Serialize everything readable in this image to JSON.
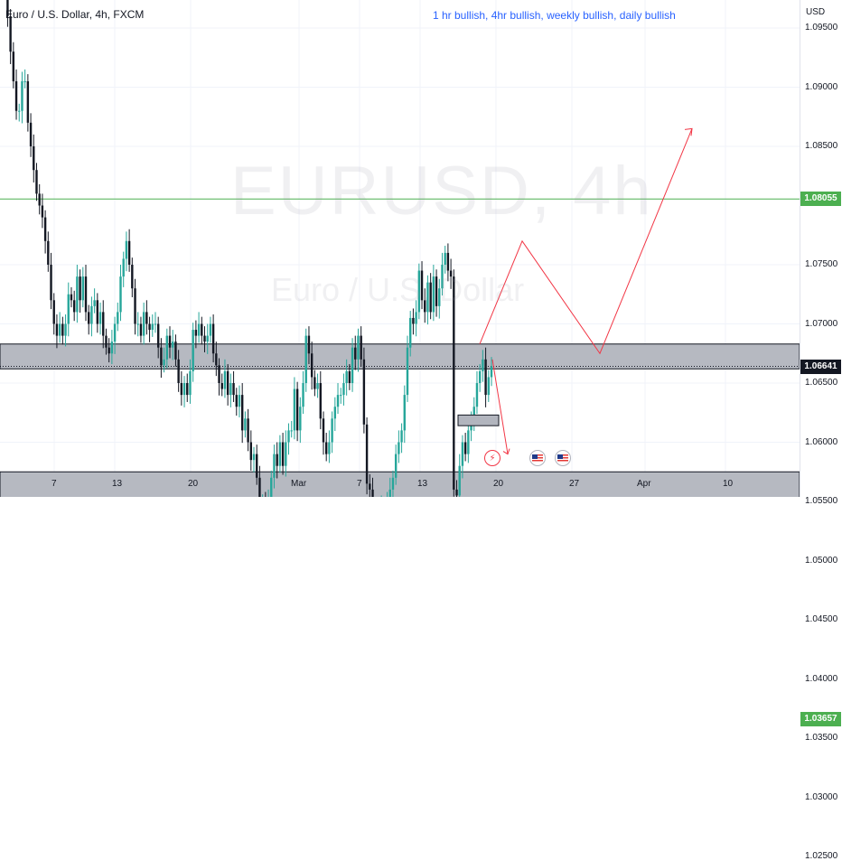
{
  "header": {
    "symbol_title": "Euro / U.S. Dollar, 4h, FXCM"
  },
  "annotation": {
    "text": "1 hr bullish, 4hr bullish, weekly bullish, daily bullish"
  },
  "watermark": {
    "symbol": "EURUSD, 4h",
    "description": "Euro / U.S. Dollar"
  },
  "price_axis": {
    "currency": "USD",
    "labels": [
      "1.09500",
      "1.09000",
      "1.08500",
      "1.07500",
      "1.07000",
      "1.06500",
      "1.06000",
      "1.05500",
      "1.05000",
      "1.04500",
      "1.04000",
      "1.03500",
      "1.03000",
      "1.02500"
    ],
    "tags": [
      {
        "value": "1.08055",
        "style": "green"
      },
      {
        "value": "1.06641",
        "style": "black"
      },
      {
        "value": "1.03657",
        "style": "green"
      }
    ]
  },
  "time_axis": {
    "labels": [
      "7",
      "13",
      "20",
      "Mar",
      "7",
      "13",
      "20",
      "27",
      "Apr",
      "10"
    ]
  },
  "colors": {
    "up": "#26a69a",
    "down": "#131722",
    "level": "#4caf50",
    "zone": "#b2b5be",
    "projection": "#f23645",
    "note": "#2962ff"
  },
  "events": [
    "flash-icon",
    "us-flag-icon",
    "us-flag-icon"
  ],
  "chart_data": {
    "type": "candlestick",
    "symbol": "EURUSD",
    "timeframe": "4h",
    "ylim": [
      1.0215,
      1.099
    ],
    "horizontal_levels": [
      1.08055,
      1.03657
    ],
    "current_price": 1.06641,
    "zones": [
      [
        1.0662,
        1.0683
      ],
      [
        1.0515,
        1.0575
      ]
    ],
    "series": [
      {
        "values": [
          1.0995,
          1.099,
          1.096,
          1.093,
          1.0905,
          1.088,
          1.088,
          1.0905,
          1.0905,
          1.087,
          1.085,
          1.083,
          1.081,
          1.08,
          1.079,
          1.077,
          1.075,
          1.072,
          1.07,
          1.069,
          1.07,
          1.069,
          1.07,
          1.0725,
          1.072,
          1.071,
          1.074,
          1.072,
          1.074,
          1.071,
          1.07,
          1.0715,
          1.072,
          1.07,
          1.071,
          1.069,
          1.068,
          1.0675,
          1.0685,
          1.07,
          1.071,
          1.074,
          1.0755,
          1.077,
          1.075,
          1.073,
          1.07,
          1.07,
          1.069,
          1.071,
          1.07,
          1.0695,
          1.07,
          1.07,
          1.068,
          1.0665,
          1.067,
          1.069,
          1.068,
          1.0685,
          1.067,
          1.065,
          1.064,
          1.065,
          1.064,
          1.066,
          1.0695,
          1.069,
          1.07,
          1.069,
          1.0685,
          1.069,
          1.07,
          1.0675,
          1.0665,
          1.065,
          1.0645,
          1.066,
          1.064,
          1.065,
          1.064,
          1.063,
          1.064,
          1.061,
          1.062,
          1.06,
          1.0585,
          1.059,
          1.057,
          1.0545,
          1.055,
          1.054,
          1.055,
          1.057,
          1.059,
          1.058,
          1.06,
          1.058,
          1.06,
          1.061,
          1.061,
          1.0645,
          1.061,
          1.063,
          1.065,
          1.069,
          1.0675,
          1.0655,
          1.0645,
          1.065,
          1.062,
          1.06,
          1.059,
          1.06,
          1.062,
          1.063,
          1.064,
          1.064,
          1.065,
          1.066,
          1.065,
          1.068,
          1.067,
          1.069,
          1.067,
          1.0615,
          1.0565,
          1.056,
          1.0545,
          1.054,
          1.0535,
          1.0545,
          1.054,
          1.055,
          1.056,
          1.057,
          1.059,
          1.06,
          1.061,
          1.064,
          1.068,
          1.0705,
          1.07,
          1.071,
          1.0745,
          1.072,
          1.071,
          1.0735,
          1.071,
          1.074,
          1.0715,
          1.073,
          1.075,
          1.076,
          1.0745,
          1.074,
          1.056,
          1.0555,
          1.058,
          1.06,
          1.059,
          1.061,
          1.062,
          1.063,
          1.065,
          1.066,
          1.067,
          1.064,
          1.0655,
          1.0664
        ]
      }
    ],
    "projection_path": [
      1.0683,
      1.077,
      1.0675,
      1.0865
    ],
    "short_projection": [
      1.067,
      1.059
    ]
  }
}
